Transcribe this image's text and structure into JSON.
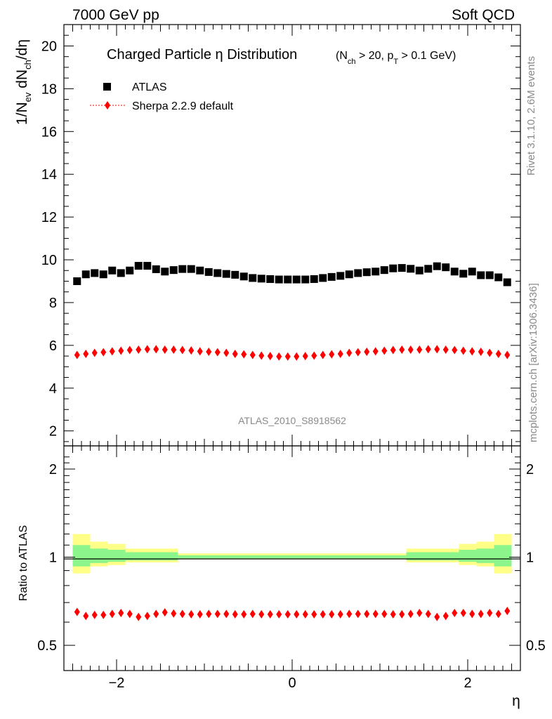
{
  "header": {
    "left": "7000 GeV pp",
    "right": "Soft QCD"
  },
  "side_labels": {
    "upper": "Rivet 3.1.10,  2.6M events",
    "lower": "mcplots.cern.ch [arXiv:1306.3436]"
  },
  "chart_data": [
    {
      "type": "scatter",
      "title": {
        "main": "Charged Particle η Distribution",
        "detail": "(N_ch > 20, p_T > 0.1 GeV)"
      },
      "ylabel": "1/N_ev dN_ch/dη",
      "watermark": "ATLAS_2010_S8918562",
      "xlim": [
        -2.6,
        2.6
      ],
      "ylim": [
        1.3,
        21
      ],
      "y_ticks": [
        2,
        4,
        6,
        8,
        10,
        12,
        14,
        16,
        18,
        20
      ],
      "legend_position": "top-left",
      "x": [
        -2.45,
        -2.35,
        -2.25,
        -2.15,
        -2.05,
        -1.95,
        -1.85,
        -1.75,
        -1.65,
        -1.55,
        -1.45,
        -1.35,
        -1.25,
        -1.15,
        -1.05,
        -0.95,
        -0.85,
        -0.75,
        -0.65,
        -0.55,
        -0.45,
        -0.35,
        -0.25,
        -0.15,
        -0.05,
        0.05,
        0.15,
        0.25,
        0.35,
        0.45,
        0.55,
        0.65,
        0.75,
        0.85,
        0.95,
        1.05,
        1.15,
        1.25,
        1.35,
        1.45,
        1.55,
        1.65,
        1.75,
        1.85,
        1.95,
        2.05,
        2.15,
        2.25,
        2.35,
        2.45
      ],
      "series": [
        {
          "name": "ATLAS",
          "marker": "square",
          "color": "#000000",
          "values": [
            9.0,
            9.32,
            9.38,
            9.32,
            9.5,
            9.38,
            9.5,
            9.72,
            9.72,
            9.56,
            9.45,
            9.52,
            9.57,
            9.57,
            9.5,
            9.43,
            9.38,
            9.34,
            9.3,
            9.22,
            9.15,
            9.12,
            9.1,
            9.08,
            9.08,
            9.08,
            9.08,
            9.1,
            9.15,
            9.2,
            9.25,
            9.32,
            9.38,
            9.42,
            9.45,
            9.52,
            9.6,
            9.62,
            9.58,
            9.5,
            9.58,
            9.7,
            9.65,
            9.45,
            9.35,
            9.45,
            9.28,
            9.28,
            9.18,
            8.95
          ]
        },
        {
          "name": "Sherpa 2.2.9 default",
          "marker": "diamond",
          "color": "#ff0000",
          "values": [
            5.55,
            5.6,
            5.65,
            5.68,
            5.72,
            5.75,
            5.78,
            5.8,
            5.82,
            5.82,
            5.8,
            5.8,
            5.78,
            5.76,
            5.72,
            5.7,
            5.68,
            5.65,
            5.6,
            5.58,
            5.55,
            5.52,
            5.5,
            5.48,
            5.48,
            5.48,
            5.5,
            5.52,
            5.55,
            5.58,
            5.6,
            5.65,
            5.68,
            5.7,
            5.72,
            5.75,
            5.78,
            5.8,
            5.8,
            5.8,
            5.82,
            5.82,
            5.8,
            5.78,
            5.75,
            5.72,
            5.7,
            5.65,
            5.6,
            5.55
          ]
        }
      ]
    },
    {
      "type": "scatter",
      "ylabel": "Ratio to ATLAS",
      "xlabel": "η",
      "xlim": [
        -2.6,
        2.6
      ],
      "ylim": [
        0.41,
        2.4
      ],
      "y_scale": "log",
      "y_ticks": [
        0.5,
        1,
        2
      ],
      "x_ticks": [
        -2,
        0,
        2
      ],
      "x_tick_labels": [
        "−2",
        "0",
        "2"
      ],
      "reference_line": 1,
      "bands": {
        "x_edges": [
          -2.5,
          -2.3,
          -2.1,
          -1.9,
          -1.3,
          1.3,
          1.9,
          2.1,
          2.3,
          2.5
        ],
        "yellow": [
          [
            0.88,
            1.2
          ],
          [
            0.93,
            1.13
          ],
          [
            0.94,
            1.11
          ],
          [
            0.96,
            1.07
          ],
          [
            0.985,
            1.03
          ],
          [
            0.96,
            1.07
          ],
          [
            0.94,
            1.11
          ],
          [
            0.93,
            1.13
          ],
          [
            0.88,
            1.2
          ]
        ],
        "green": [
          [
            0.93,
            1.1
          ],
          [
            0.955,
            1.07
          ],
          [
            0.965,
            1.06
          ],
          [
            0.975,
            1.04
          ],
          [
            0.99,
            1.015
          ],
          [
            0.975,
            1.04
          ],
          [
            0.965,
            1.06
          ],
          [
            0.955,
            1.07
          ],
          [
            0.93,
            1.1
          ]
        ],
        "colors": {
          "yellow": "#ffff88",
          "green": "#8cf58c"
        }
      },
      "series": [
        {
          "name": "Sherpa 2.2.9 default",
          "marker": "diamond",
          "color": "#ff0000",
          "values": [
            0.65,
            0.63,
            0.635,
            0.635,
            0.64,
            0.645,
            0.64,
            0.625,
            0.63,
            0.64,
            0.648,
            0.642,
            0.64,
            0.638,
            0.638,
            0.64,
            0.64,
            0.64,
            0.638,
            0.638,
            0.64,
            0.638,
            0.638,
            0.638,
            0.638,
            0.638,
            0.638,
            0.638,
            0.638,
            0.638,
            0.638,
            0.64,
            0.64,
            0.64,
            0.64,
            0.64,
            0.638,
            0.638,
            0.64,
            0.645,
            0.64,
            0.625,
            0.63,
            0.645,
            0.645,
            0.64,
            0.64,
            0.645,
            0.64,
            0.655
          ]
        }
      ]
    }
  ]
}
